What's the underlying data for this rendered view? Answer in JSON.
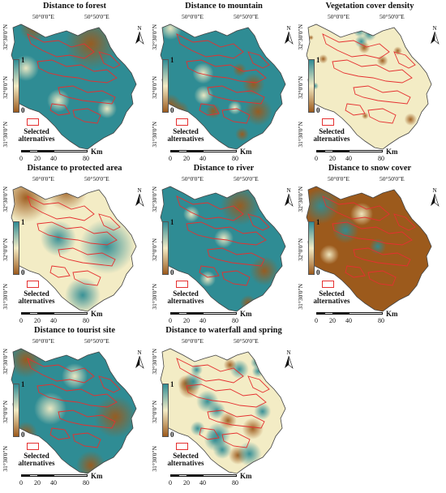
{
  "shared": {
    "lon_labels": [
      "50°0'0\"E",
      "50°50'0\"E"
    ],
    "lat_labels": [
      "32°30'0\"N",
      "32°0'0\"N",
      "31°30'0\"N"
    ],
    "north_label": "N",
    "legend_high": "1",
    "legend_low": "0",
    "selected_label": "Selected alternatives",
    "scale_ticks": [
      "0",
      "20",
      "40",
      "80"
    ],
    "scale_unit": "Km",
    "alternatives_color": "#e53030"
  },
  "panels": [
    {
      "title": "Distance to forest",
      "pattern": "forest"
    },
    {
      "title": "Distance to mountain",
      "pattern": "mountain"
    },
    {
      "title": "Vegetation cover density",
      "pattern": "vegetation"
    },
    {
      "title": "Distance to protected area",
      "pattern": "protected"
    },
    {
      "title": "Distance to river",
      "pattern": "river"
    },
    {
      "title": "Distance to snow cover",
      "pattern": "snow"
    },
    {
      "title": "Distance to tourist site",
      "pattern": "tourist"
    },
    {
      "title": "Distance to waterfall and spring",
      "pattern": "waterfall"
    }
  ],
  "palette": {
    "high": "#2f8c94",
    "mid": "#f3ecc5",
    "low": "#9c5a1c"
  }
}
